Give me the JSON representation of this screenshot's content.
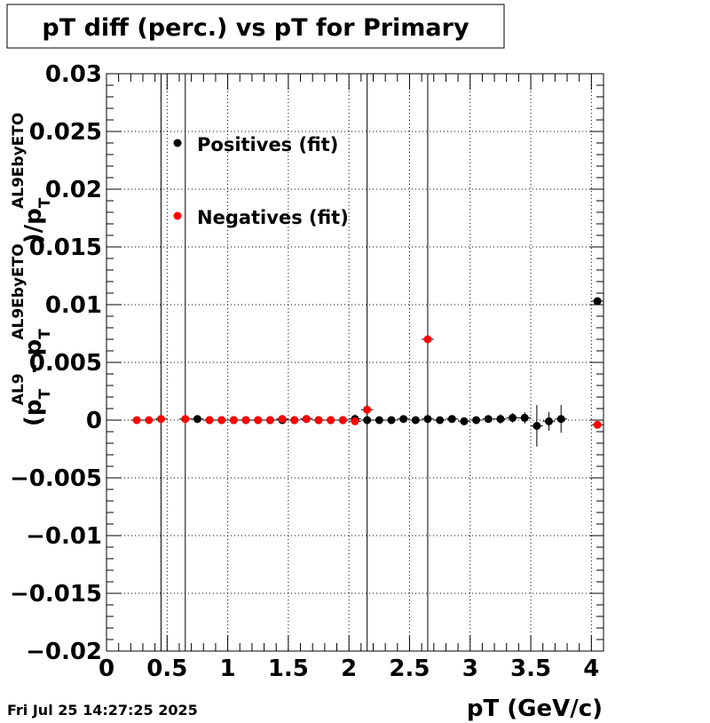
{
  "chart_data": {
    "type": "scatter",
    "title": "pT diff (perc.) vs pT for Primary",
    "xlabel": "pT (GeV/c)",
    "ylabel": {
      "open": "(p",
      "sub1": "T",
      "sup1": "AL9",
      "minus": "- p",
      "sub2": "T",
      "sup2": "AL9EbyETO",
      "mid": ")/p",
      "sub3": "T",
      "sup3": "AL9EbyETO"
    },
    "xlim": [
      0,
      4.1
    ],
    "ylim": [
      -0.02,
      0.03
    ],
    "x_ticks": [
      0,
      0.5,
      1,
      1.5,
      2,
      2.5,
      3,
      3.5,
      4
    ],
    "x_tick_labels": [
      "0",
      "0.5",
      "1",
      "1.5",
      "2",
      "2.5",
      "3",
      "3.5",
      "4"
    ],
    "y_ticks": [
      -0.02,
      -0.015,
      -0.01,
      -0.005,
      0,
      0.005,
      0.01,
      0.015,
      0.02,
      0.025,
      0.03
    ],
    "y_tick_labels": [
      "−0.02",
      "−0.015",
      "−0.01",
      "−0.005",
      "0",
      "0.005",
      "0.01",
      "0.015",
      "0.02",
      "0.025",
      "0.03"
    ],
    "legend_position": "top-left",
    "grid": true,
    "series": [
      {
        "name": "Positives (fit)",
        "color": "#000000",
        "points": [
          {
            "x": 0.75,
            "y": 0.0001,
            "err": 0
          },
          {
            "x": 0.85,
            "y": 0.0,
            "err": 0
          },
          {
            "x": 0.95,
            "y": 0.0,
            "err": 0
          },
          {
            "x": 1.05,
            "y": 0.0,
            "err": 0
          },
          {
            "x": 1.15,
            "y": 0.0,
            "err": 0
          },
          {
            "x": 1.25,
            "y": 0.0,
            "err": 0
          },
          {
            "x": 1.35,
            "y": 0.0,
            "err": 0
          },
          {
            "x": 1.45,
            "y": 0.0,
            "err": 0
          },
          {
            "x": 1.55,
            "y": 0.0,
            "err": 0
          },
          {
            "x": 1.65,
            "y": 0.0001,
            "err": 0
          },
          {
            "x": 1.75,
            "y": 0.0,
            "err": 0
          },
          {
            "x": 1.85,
            "y": 0.0,
            "err": 0
          },
          {
            "x": 1.95,
            "y": 0.0,
            "err": 0
          },
          {
            "x": 2.05,
            "y": 0.0001,
            "err": 0.0004
          },
          {
            "x": 2.15,
            "y": 0.0,
            "err": 0.0004
          },
          {
            "x": 2.25,
            "y": 0.0,
            "err": 0.0003
          },
          {
            "x": 2.35,
            "y": 0.0,
            "err": 0.0003
          },
          {
            "x": 2.45,
            "y": 0.0001,
            "err": 0.0003
          },
          {
            "x": 2.55,
            "y": 0.0,
            "err": 0.0003
          },
          {
            "x": 2.65,
            "y": 0.0001,
            "err": 0.0004
          },
          {
            "x": 2.75,
            "y": 0.0,
            "err": 0.0003
          },
          {
            "x": 2.85,
            "y": 0.0001,
            "err": 0.0003
          },
          {
            "x": 2.95,
            "y": -0.0001,
            "err": 0.0003
          },
          {
            "x": 3.05,
            "y": 0.0,
            "err": 0.0003
          },
          {
            "x": 3.15,
            "y": 0.0001,
            "err": 0.0003
          },
          {
            "x": 3.25,
            "y": 0.0001,
            "err": 0.0004
          },
          {
            "x": 3.35,
            "y": 0.0002,
            "err": 0.0004
          },
          {
            "x": 3.45,
            "y": 0.0002,
            "err": 0.0005
          },
          {
            "x": 3.55,
            "y": -0.0005,
            "err": 0.0018
          },
          {
            "x": 3.65,
            "y": -0.0001,
            "err": 0.0008
          },
          {
            "x": 3.75,
            "y": 0.0001,
            "err": 0.0012
          },
          {
            "x": 4.05,
            "y": 0.0103,
            "err": 0
          }
        ]
      },
      {
        "name": "Negatives (fit)",
        "color": "#ff0000",
        "points": [
          {
            "x": 0.25,
            "y": 0.0,
            "err": 0
          },
          {
            "x": 0.35,
            "y": 0.0,
            "err": 0
          },
          {
            "x": 0.45,
            "y": 0.0001,
            "err": 0.0004
          },
          {
            "x": 0.65,
            "y": 0.0001,
            "err": 0
          },
          {
            "x": 0.85,
            "y": 0.0,
            "err": 0
          },
          {
            "x": 0.95,
            "y": 0.0,
            "err": 0
          },
          {
            "x": 1.05,
            "y": 0.0,
            "err": 0
          },
          {
            "x": 1.15,
            "y": 0.0,
            "err": 0
          },
          {
            "x": 1.25,
            "y": 0.0,
            "err": 0
          },
          {
            "x": 1.35,
            "y": 0.0,
            "err": 0
          },
          {
            "x": 1.45,
            "y": 0.0001,
            "err": 0
          },
          {
            "x": 1.55,
            "y": 0.0,
            "err": 0
          },
          {
            "x": 1.65,
            "y": 0.0001,
            "err": 0
          },
          {
            "x": 1.75,
            "y": 0.0,
            "err": 0
          },
          {
            "x": 1.85,
            "y": 0.0,
            "err": 0
          },
          {
            "x": 1.95,
            "y": 0.0,
            "err": 0
          },
          {
            "x": 2.05,
            "y": -0.0001,
            "err": 0.0003
          },
          {
            "x": 2.15,
            "y": 0.0009,
            "err": 0.0004
          },
          {
            "x": 2.65,
            "y": 0.007,
            "err": 0
          },
          {
            "x": 4.05,
            "y": -0.0004,
            "err": 0
          }
        ]
      }
    ],
    "full_height_error_bars": [
      0.45,
      0.65,
      2.15,
      2.65
    ]
  },
  "footer": {
    "timestamp": "Fri Jul 25 14:27:25 2025"
  }
}
